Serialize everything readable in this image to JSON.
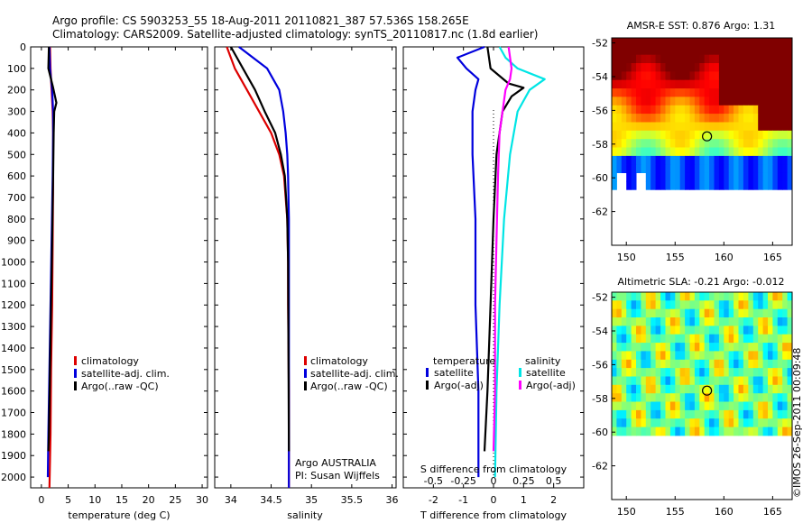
{
  "header": {
    "line1": "Argo profile: CS 5903253_55 18-Aug-2011 20110821_387 57.536S 158.265E",
    "line2": "Climatology: CARS2009. Satellite-adjusted climatology: synTS_20110817.nc (1.8d earlier)"
  },
  "chart_data": [
    {
      "type": "line",
      "panel": "temperature",
      "xlabel": "temperature (deg C)",
      "ylabel": "",
      "xlim": [
        -2,
        31
      ],
      "ylim": [
        2050,
        0
      ],
      "xticks": [
        0,
        5,
        10,
        15,
        20,
        25,
        30
      ],
      "xtick_labels": [
        "0",
        "5",
        "10",
        "15",
        "20",
        "25",
        "30"
      ],
      "yticks": [
        0,
        100,
        200,
        300,
        400,
        500,
        600,
        700,
        800,
        900,
        1000,
        1100,
        1200,
        1300,
        1400,
        1500,
        1600,
        1700,
        1800,
        1900,
        2000
      ],
      "ytick_labels": [
        "0",
        "100",
        "200",
        "300",
        "400",
        "500",
        "600",
        "700",
        "800",
        "900",
        "1000",
        "1100",
        "1200",
        "1300",
        "1400",
        "1500",
        "1600",
        "1700",
        "1800",
        "1900",
        "2000"
      ],
      "legend": [
        "climatology",
        "satellite-adj. clim.",
        "Argo(..raw -QC)"
      ],
      "series": [
        {
          "name": "climatology",
          "color": "#dd0000",
          "x": [
            1.6,
            1.7,
            1.9,
            2.1,
            2.2,
            2.2,
            2.1,
            2.0,
            1.8,
            1.7,
            1.5
          ],
          "y": [
            0,
            100,
            200,
            300,
            400,
            600,
            900,
            1200,
            1500,
            1800,
            2050
          ]
        },
        {
          "name": "satellite-adj. clim.",
          "color": "#0000dd",
          "x": [
            1.5,
            1.6,
            2.0,
            2.2,
            2.2,
            2.1,
            1.9,
            1.7,
            1.5,
            1.3,
            1.2
          ],
          "y": [
            0,
            100,
            200,
            300,
            400,
            600,
            900,
            1200,
            1500,
            1800,
            2000
          ]
        },
        {
          "name": "Argo(..raw -QC)",
          "color": "#000000",
          "x": [
            1.4,
            1.3,
            2.2,
            2.8,
            2.4,
            2.3,
            2.2,
            2.0,
            1.8,
            1.6,
            1.4,
            1.3
          ],
          "y": [
            0,
            100,
            190,
            260,
            300,
            400,
            600,
            900,
            1200,
            1500,
            1800,
            1880
          ]
        }
      ]
    },
    {
      "type": "line",
      "panel": "salinity",
      "xlabel": "salinity",
      "xlim": [
        33.8,
        36.05
      ],
      "ylim": [
        2050,
        0
      ],
      "xticks": [
        34,
        34.5,
        35,
        35.5,
        36
      ],
      "xtick_labels": [
        "34",
        "34.5",
        "35",
        "35.5",
        "36"
      ],
      "legend": [
        "climatology",
        "satellite-adj. clim.",
        "Argo(..raw -QC)"
      ],
      "series": [
        {
          "name": "climatology",
          "color": "#dd0000",
          "x": [
            33.95,
            34.05,
            34.2,
            34.35,
            34.5,
            34.6,
            34.66,
            34.7,
            34.71,
            34.71,
            34.72,
            34.72
          ],
          "y": [
            0,
            100,
            200,
            300,
            400,
            500,
            600,
            800,
            1000,
            1200,
            1600,
            2050
          ]
        },
        {
          "name": "satellite-adj. clim.",
          "color": "#0000dd",
          "x": [
            34.1,
            34.45,
            34.6,
            34.65,
            34.68,
            34.7,
            34.71,
            34.72,
            34.72,
            34.72
          ],
          "y": [
            0,
            100,
            200,
            300,
            400,
            500,
            600,
            800,
            1200,
            2050
          ]
        },
        {
          "name": "Argo(..raw -QC)",
          "color": "#000000",
          "x": [
            34.0,
            34.15,
            34.3,
            34.42,
            34.55,
            34.62,
            34.67,
            34.7,
            34.71,
            34.72
          ],
          "y": [
            0,
            100,
            200,
            300,
            400,
            500,
            600,
            800,
            1000,
            1880
          ]
        }
      ],
      "annotation": [
        "Argo AUSTRALIA",
        "PI: Susan Wijffels"
      ]
    },
    {
      "type": "line",
      "panel": "difference",
      "xlabel": "T difference from climatology",
      "xlabel_top": "S difference from climatology",
      "xlim": [
        -3,
        3
      ],
      "ylim": [
        2050,
        0
      ],
      "xticks": [
        -2,
        -1,
        0,
        1,
        2
      ],
      "xtick_labels": [
        "-2",
        "-1",
        "0",
        "1",
        "2"
      ],
      "top_tick_labels": [
        "-0.5",
        "-0.25",
        "0",
        "0.25",
        "0.5"
      ],
      "legend_groups": [
        "temperature",
        "salinity"
      ],
      "legend": [
        "satellite",
        "Argo(-adj)",
        "satellite",
        "Argo(-adj)"
      ],
      "series": [
        {
          "name": "temperature satellite",
          "color": "#0000dd",
          "x": [
            -0.3,
            -1.2,
            -0.9,
            -0.5,
            -0.6,
            -0.7,
            -0.7,
            -0.6,
            -0.6,
            -0.5,
            -0.5
          ],
          "y": [
            0,
            50,
            100,
            150,
            200,
            300,
            500,
            800,
            1200,
            1600,
            2000
          ]
        },
        {
          "name": "temperature Argo(-adj)",
          "color": "#000000",
          "x": [
            -0.2,
            -0.1,
            0.5,
            1.0,
            0.6,
            0.3,
            0.1,
            0.0,
            -0.1,
            -0.2,
            -0.3
          ],
          "y": [
            0,
            100,
            170,
            190,
            230,
            300,
            500,
            800,
            1200,
            1600,
            1880
          ]
        },
        {
          "name": "salinity satellite",
          "color": "#00e5e5",
          "x": [
            0.2,
            0.4,
            0.8,
            1.7,
            1.2,
            0.8,
            0.55,
            0.35,
            0.2,
            0.1,
            0.05
          ],
          "y": [
            0,
            50,
            100,
            150,
            200,
            300,
            500,
            800,
            1200,
            1600,
            2000
          ]
        },
        {
          "name": "salinity Argo(-adj)",
          "color": "#ff00ff",
          "x": [
            0.5,
            0.6,
            0.55,
            0.4,
            0.3,
            0.2,
            0.15,
            0.1,
            0.05,
            0.05,
            0.0
          ],
          "y": [
            0,
            100,
            150,
            200,
            300,
            400,
            600,
            900,
            1200,
            1600,
            1880
          ]
        }
      ]
    },
    {
      "type": "heatmap",
      "panel": "sst_map",
      "title": "AMSR-E SST: 0.876 Argo: 1.31",
      "xlim": [
        148.5,
        167
      ],
      "ylim": [
        -64,
        -51.7
      ],
      "xticks": [
        150,
        155,
        160,
        165
      ],
      "yticks": [
        -52,
        -54,
        -56,
        -58,
        -60,
        -62
      ],
      "argo_marker": [
        158.27,
        -57.54
      ]
    },
    {
      "type": "heatmap",
      "panel": "sla_map",
      "title": "Altimetric SLA: -0.21 Argo: -0.012",
      "xlim": [
        148.5,
        167
      ],
      "ylim": [
        -64,
        -51.7
      ],
      "xticks": [
        150,
        155,
        160,
        165
      ],
      "yticks": [
        -52,
        -54,
        -56,
        -58,
        -60,
        -62
      ],
      "argo_marker": [
        158.27,
        -57.54
      ]
    }
  ],
  "footer": {
    "credit": "©IMOS 26-Sep-2011 00:09:48"
  },
  "colors": {
    "red": "#dd0000",
    "blue": "#0000dd",
    "black": "#000000",
    "cyan": "#00e5e5",
    "magenta": "#ff00ff"
  }
}
